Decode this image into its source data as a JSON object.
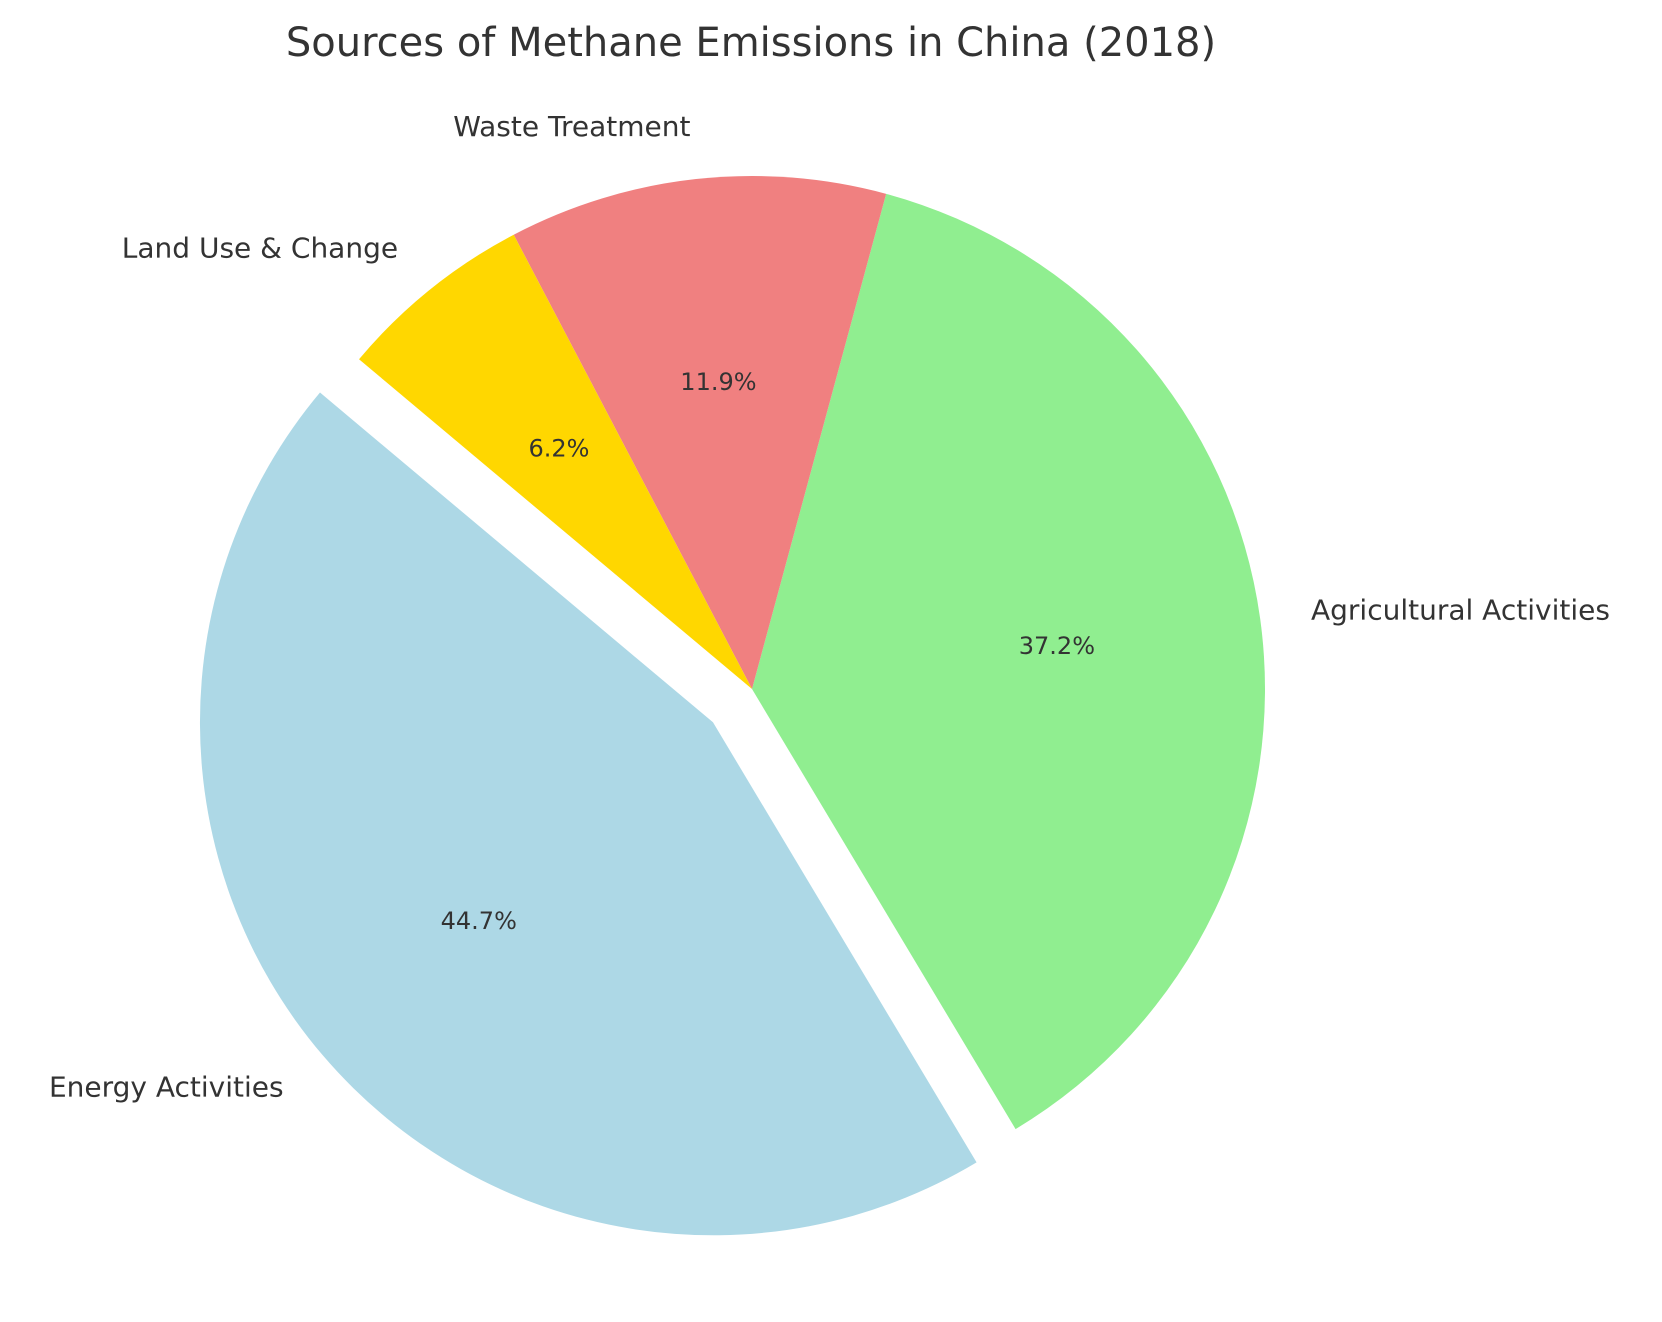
{
  "chart_data": {
    "type": "pie",
    "title": "Sources of Methane Emissions in China (2018)",
    "slices": [
      {
        "label": "Energy Activities",
        "value": 44.7,
        "pct_label": "44.7%",
        "color": "#add8e6",
        "exploded": true
      },
      {
        "label": "Agricultural Activities",
        "value": 37.2,
        "pct_label": "37.2%",
        "color": "#90ee90",
        "exploded": false
      },
      {
        "label": "Waste Treatment",
        "value": 11.9,
        "pct_label": "11.9%",
        "color": "#f08080",
        "exploded": false
      },
      {
        "label": "Land Use & Change",
        "value": 6.2,
        "pct_label": "6.2%",
        "color": "#ffd700",
        "exploded": false
      }
    ],
    "start_angle": 140,
    "direction": "counterclockwise",
    "legend": "none"
  }
}
